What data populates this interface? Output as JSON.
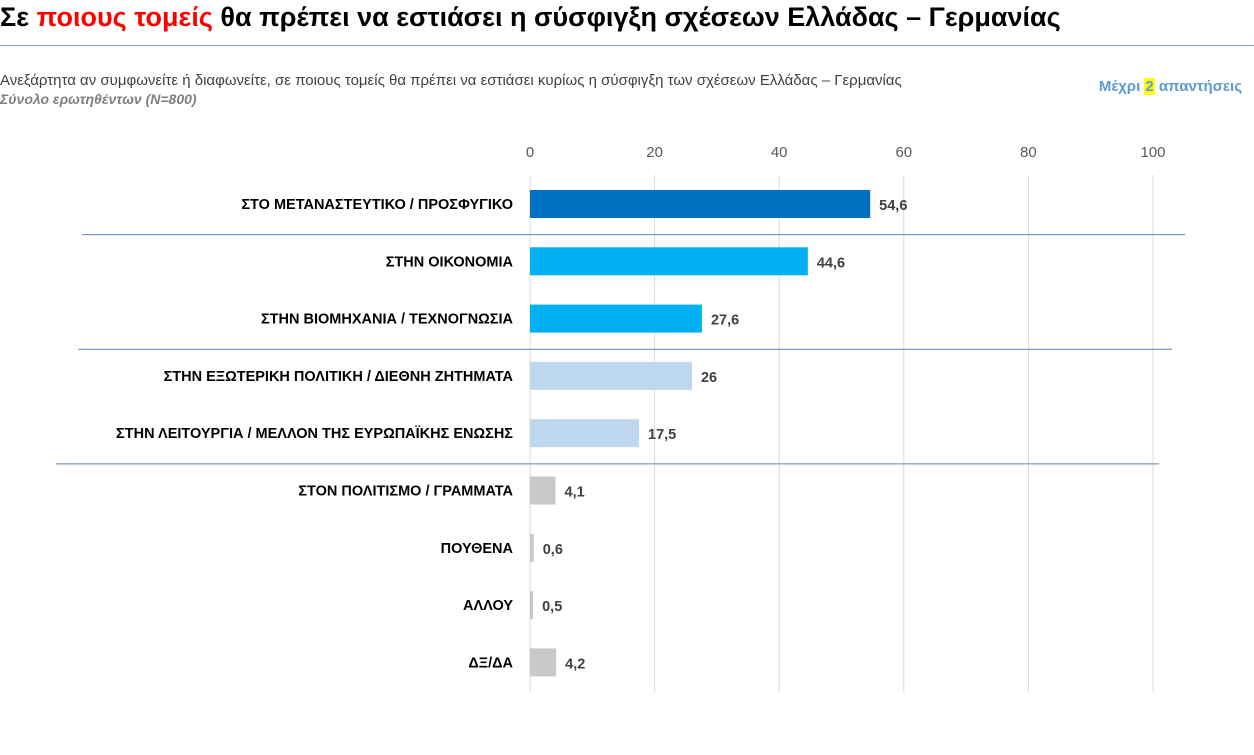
{
  "header": {
    "title_prefix": "Σε ",
    "title_highlight": "ποιους τομείς",
    "title_suffix": " θα πρέπει να εστιάσει η σύσφιγξη σχέσεων Ελλάδας – Γερμανίας",
    "question": "Ανεξάρτητα αν συμφωνείτε ή διαφωνείτε, σε ποιους τομείς θα πρέπει να εστιάσει κυρίως η σύσφιγξη των σχέσεων Ελλάδας – Γερμανίας",
    "base": "Σύνολο ερωτηθέντων (Ν=800)",
    "answers_prefix": "Μέχρι ",
    "answers_number": "2",
    "answers_suffix": " απαντήσεις"
  },
  "colors": {
    "title_highlight": "#ff0000",
    "dark_blue": "#0070c0",
    "bright_blue": "#00b0f0",
    "light_blue": "#bdd7ee",
    "gray": "#c9c9c9",
    "gridline": "#d9d9d9",
    "separator": "#5b84b1",
    "note_blue": "#5b9bd5",
    "note_highlight": "#ffff00"
  },
  "chart_data": {
    "type": "bar",
    "orientation": "horizontal",
    "xlim": [
      0,
      100
    ],
    "ticks": [
      0,
      20,
      40,
      60,
      80,
      100
    ],
    "grid": true,
    "categories": [
      "ΣΤΟ ΜΕΤΑΝΑΣΤΕΥΤΙΚΟ / ΠΡΟΣΦΥΓΙΚΟ",
      "ΣΤΗΝ ΟΙΚΟΝΟΜΙΑ",
      "ΣΤΗΝ ΒΙΟΜΗΧΑΝΙΑ / ΤΕΧΝΟΓΝΩΣΙΑ",
      "ΣΤΗΝ ΕΞΩΤΕΡΙΚΗ ΠΟΛΙΤΙΚΗ / ΔΙΕΘΝΗ ΖΗΤΗΜΑΤΑ",
      "ΣΤΗΝ ΛΕΙΤΟΥΡΓΙΑ / ΜΕΛΛΟΝ ΤΗΣ ΕΥΡΩΠΑΪΚΗΣ ΕΝΩΣΗΣ",
      "ΣΤΟΝ ΠΟΛΙΤΙΣΜΟ / ΓΡΑΜΜΑΤΑ",
      "ΠΟΥΘΕΝΑ",
      "ΑΛΛΟΥ",
      "ΔΞ/ΔΑ"
    ],
    "values": [
      54.6,
      44.6,
      27.6,
      26,
      17.5,
      4.1,
      0.6,
      0.5,
      4.2
    ],
    "value_labels": [
      "54,6",
      "44,6",
      "27,6",
      "26",
      "17,5",
      "4,1",
      "0,6",
      "0,5",
      "4,2"
    ],
    "bar_colors": [
      "#0070c0",
      "#00b0f0",
      "#00b0f0",
      "#bdd7ee",
      "#bdd7ee",
      "#c9c9c9",
      "#c9c9c9",
      "#c9c9c9",
      "#c9c9c9"
    ],
    "group_separators_after": [
      0,
      2,
      4
    ]
  }
}
